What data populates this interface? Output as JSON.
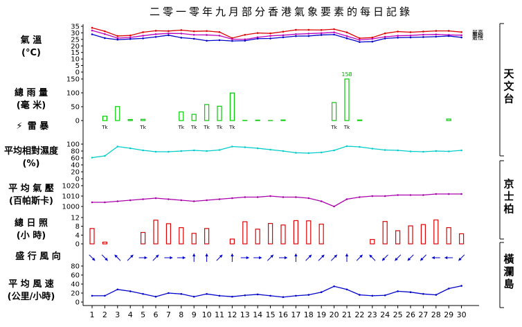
{
  "title": "二零一零年九月部分香港氣象要素的每日記錄",
  "days": [
    "1",
    "2",
    "3",
    "4",
    "5",
    "6",
    "7",
    "8",
    "9",
    "10",
    "11",
    "12",
    "13",
    "14",
    "15",
    "16",
    "17",
    "18",
    "19",
    "20",
    "21",
    "22",
    "23",
    "24",
    "25",
    "26",
    "27",
    "28",
    "29",
    "30"
  ],
  "stations": [
    "天文台",
    "京士柏",
    "橫瀾島"
  ],
  "chart_data": [
    {
      "type": "line",
      "panel": "temperature",
      "label_line1": "氣 溫",
      "label_line2": "(°C)",
      "ylim": [
        0,
        35
      ],
      "yticks": [
        "0",
        "5",
        "10",
        "15",
        "20",
        "25",
        "30",
        "35"
      ],
      "series": [
        {
          "name": "最高",
          "color": "#dd0000",
          "values": [
            33.9,
            31.2,
            27.6,
            28.0,
            30.5,
            31.6,
            31.4,
            32.1,
            31.2,
            31.4,
            30.6,
            26.0,
            28.5,
            29.9,
            29.6,
            30.9,
            32.3,
            32.3,
            32.2,
            32.8,
            30.4,
            25.9,
            26.4,
            29.6,
            31.0,
            30.5,
            31.0,
            31.5,
            31.5,
            30.6
          ]
        },
        {
          "name": "平均",
          "color": "#bb00bb",
          "values": [
            31.8,
            29.1,
            26.0,
            26.5,
            27.8,
            29.0,
            29.6,
            29.5,
            28.5,
            28.4,
            27.9,
            25.2,
            25.0,
            26.6,
            27.7,
            28.2,
            29.0,
            29.4,
            29.8,
            30.4,
            27.5,
            24.6,
            25.4,
            27.0,
            27.8,
            28.0,
            28.6,
            28.8,
            28.4,
            28.2
          ]
        },
        {
          "name": "最低",
          "color": "#0000cc",
          "values": [
            28.9,
            26.0,
            24.8,
            25.3,
            25.8,
            26.9,
            28.2,
            26.3,
            25.5,
            24.0,
            24.4,
            23.8,
            24.0,
            25.6,
            25.7,
            26.6,
            27.5,
            27.6,
            28.4,
            28.7,
            25.8,
            23.0,
            23.3,
            25.7,
            26.3,
            26.5,
            26.8,
            27.1,
            27.6,
            26.5
          ]
        }
      ]
    },
    {
      "type": "bar",
      "panel": "rainfall",
      "label_line1": "總 雨 量",
      "label_line2": "(毫 米)",
      "ylim": [
        0,
        150
      ],
      "yticks": [
        "0",
        "50",
        "100",
        "150"
      ],
      "color": "#00cc00",
      "values": [
        0.0,
        15.6,
        50.5,
        3.7,
        4.5,
        0.0,
        0.0,
        31.2,
        22.4,
        57.8,
        51.7,
        99.4,
        0.6,
        1.4,
        0.3,
        2.0,
        0.0,
        0.0,
        0.0,
        65.0,
        158.0,
        1.9,
        0.0,
        0.0,
        0.0,
        0.0,
        0.0,
        0.0,
        5.3,
        0.0
      ],
      "over_label": "158"
    },
    {
      "type": "table",
      "panel": "thunderstorm",
      "label": "雷 暴",
      "storm_text": "Tk",
      "days_with_storm": [
        2,
        5,
        8,
        9,
        10,
        11,
        12,
        20,
        21
      ]
    },
    {
      "type": "line",
      "panel": "humidity",
      "label_line1": "平均相對濕度",
      "label_line2": "(%)",
      "ylim": [
        0,
        100
      ],
      "yticks": [
        "0",
        "20",
        "40",
        "60",
        "80",
        "100"
      ],
      "color": "#00cccc",
      "values": [
        61,
        66,
        93,
        88,
        82,
        78,
        78,
        80,
        82,
        80,
        83,
        93,
        91,
        88,
        84,
        80,
        75,
        74,
        76,
        82,
        94,
        92,
        87,
        83,
        82,
        79,
        78,
        80,
        79,
        82
      ]
    },
    {
      "type": "line",
      "panel": "pressure",
      "label_line1": "平 均 氣 壓",
      "label_line2": "(百帕斯卡)",
      "ylim": [
        1000,
        1020
      ],
      "yticks": [
        "1000",
        "1010",
        "1020"
      ],
      "color": "#aa00aa",
      "values": [
        1004,
        1004,
        1005,
        1006,
        1007,
        1008,
        1007,
        1006,
        1005,
        1006,
        1007,
        1008,
        1009,
        1009,
        1010,
        1009,
        1009,
        1008,
        1005,
        1000,
        1007,
        1009,
        1010,
        1010,
        1011,
        1011,
        1011,
        1012,
        1012,
        1012
      ]
    },
    {
      "type": "bar",
      "panel": "sunshine",
      "label_line1": "總 日 照",
      "label_line2": "(小 時)",
      "ylim": [
        0,
        12
      ],
      "yticks": [
        "0",
        "4",
        "8",
        "12"
      ],
      "color": "#dd0000",
      "values": [
        7.0,
        0.8,
        0.0,
        0.0,
        5.2,
        10.8,
        9.2,
        7.4,
        4.8,
        7.0,
        0.0,
        2.2,
        10.1,
        6.7,
        9.3,
        8.6,
        10.6,
        10.5,
        9.0,
        0.0,
        0.0,
        0.0,
        2.0,
        10.2,
        6.0,
        8.2,
        8.8,
        10.9,
        7.4,
        4.6
      ]
    },
    {
      "type": "scatter",
      "panel": "wind-direction",
      "label": "盛 行 風 向",
      "color": "#0000cc",
      "directions_deg": [
        135,
        135,
        315,
        45,
        90,
        45,
        90,
        90,
        0,
        0,
        45,
        0,
        90,
        90,
        45,
        90,
        0,
        45,
        45,
        45,
        0,
        45,
        315,
        225,
        225,
        225,
        225,
        270,
        270,
        225
      ]
    },
    {
      "type": "line",
      "panel": "wind-speed",
      "label_line1": "平 均 風 速",
      "label_line2": "(公里/小時)",
      "ylim": [
        0,
        80
      ],
      "yticks": [
        "0",
        "20",
        "40",
        "60",
        "80"
      ],
      "color": "#0000cc",
      "values": [
        14,
        14,
        28,
        24,
        18,
        12,
        20,
        18,
        12,
        18,
        14,
        12,
        15,
        17,
        14,
        11,
        14,
        16,
        22,
        35,
        28,
        16,
        14,
        15,
        24,
        22,
        18,
        16,
        30,
        36
      ]
    }
  ]
}
